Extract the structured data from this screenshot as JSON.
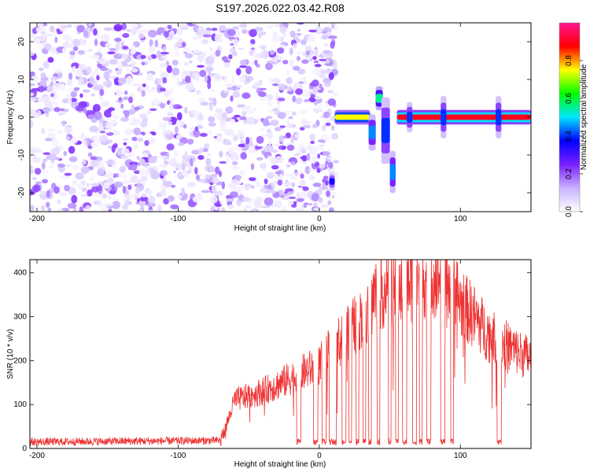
{
  "figure_title": "S197.2026.022.03.42.R08",
  "chart_data": [
    {
      "type": "heatmap",
      "title": "",
      "xlabel": "Height of straight line (km)",
      "ylabel": "Frequency (Hz)",
      "xlim": [
        -205,
        150
      ],
      "ylim": [
        -25,
        25
      ],
      "x_ticks": [
        -200,
        -100,
        0,
        100
      ],
      "y_ticks": [
        20,
        10,
        0,
        -10,
        -20
      ],
      "grid": false,
      "colorbar": {
        "label": "Normalized spectral amplitude",
        "range": [
          0,
          1
        ],
        "ticks": [
          0.0,
          0.2,
          0.4,
          0.6,
          0.8
        ],
        "colormap": [
          "#ffffff",
          "#c9b3ff",
          "#7a1fff",
          "#0000ff",
          "#00e5ff",
          "#00ff00",
          "#ffff00",
          "#ff0000",
          "#ff1493"
        ]
      },
      "noise_region": {
        "x_range": [
          -205,
          12
        ],
        "y_range": [
          -25,
          25
        ],
        "level_range": [
          0.02,
          0.16
        ]
      },
      "features": [
        {
          "x_range": [
            7,
            11
          ],
          "freq": -17,
          "freq_halfwidth": 1.5,
          "level": 0.35
        },
        {
          "x_range": [
            11,
            36
          ],
          "freq": 0,
          "freq_halfwidth": 1.2,
          "level": 0.75
        },
        {
          "x_range": [
            35,
            40
          ],
          "freq_range": [
            -7,
            -1
          ],
          "level": 0.45
        },
        {
          "x_range": [
            40,
            45
          ],
          "freq_range": [
            3,
            7
          ],
          "level": 0.55
        },
        {
          "x_range": [
            44,
            50
          ],
          "freq_range": [
            -9,
            2
          ],
          "level": 0.4
        },
        {
          "x_range": [
            50,
            54
          ],
          "freq_range": [
            -18,
            -11
          ],
          "level": 0.45
        },
        {
          "x_range": [
            55,
            150
          ],
          "freq": 0,
          "freq_halfwidth": 1.2,
          "level": 0.9
        },
        {
          "x_range": [
            62,
            66
          ],
          "freq": 0,
          "freq_halfwidth": 2.5,
          "level": 0.4
        },
        {
          "x_range": [
            86,
            90
          ],
          "freq": 0,
          "freq_halfwidth": 3.5,
          "level": 0.4
        },
        {
          "x_range": [
            125,
            129
          ],
          "freq": 0,
          "freq_halfwidth": 3.5,
          "level": 0.4
        }
      ]
    },
    {
      "type": "line",
      "title": "",
      "xlabel": "Height of straight line (km)",
      "ylabel": "SNR (10 * v/v)",
      "xlim": [
        -205,
        150
      ],
      "ylim": [
        0,
        430
      ],
      "x_ticks": [
        -200,
        -100,
        0,
        100
      ],
      "y_ticks": [
        0,
        100,
        200,
        300,
        400
      ],
      "grid": false,
      "line_color": "#ee3333",
      "envelope": [
        {
          "x": -205,
          "y": 15
        },
        {
          "x": -70,
          "y": 18
        },
        {
          "x": -65,
          "y": 60
        },
        {
          "x": -60,
          "y": 110
        },
        {
          "x": -40,
          "y": 130
        },
        {
          "x": -20,
          "y": 160
        },
        {
          "x": 0,
          "y": 190
        },
        {
          "x": 10,
          "y": 230
        },
        {
          "x": 20,
          "y": 260
        },
        {
          "x": 30,
          "y": 300
        },
        {
          "x": 40,
          "y": 350
        },
        {
          "x": 50,
          "y": 370
        },
        {
          "x": 60,
          "y": 370
        },
        {
          "x": 70,
          "y": 390
        },
        {
          "x": 80,
          "y": 395
        },
        {
          "x": 95,
          "y": 380
        },
        {
          "x": 100,
          "y": 330
        },
        {
          "x": 110,
          "y": 300
        },
        {
          "x": 120,
          "y": 260
        },
        {
          "x": 130,
          "y": 240
        },
        {
          "x": 140,
          "y": 220
        },
        {
          "x": 150,
          "y": 205
        }
      ],
      "dropouts": [
        {
          "x_range": [
            -16,
            -13
          ],
          "y": 15
        },
        {
          "x_range": [
            -4,
            -1
          ],
          "y": 15
        },
        {
          "x_range": [
            2,
            5
          ],
          "y": 15
        },
        {
          "x_range": [
            7,
            10
          ],
          "y": 15
        },
        {
          "x_range": [
            10,
            12
          ],
          "y": 15
        },
        {
          "x_range": [
            16,
            19
          ],
          "y": 15
        },
        {
          "x_range": [
            21,
            23
          ],
          "y": 15
        },
        {
          "x_range": [
            26,
            28
          ],
          "y": 15
        },
        {
          "x_range": [
            31,
            33
          ],
          "y": 15
        },
        {
          "x_range": [
            35,
            37
          ],
          "y": 15
        },
        {
          "x_range": [
            41,
            43
          ],
          "y": 15
        },
        {
          "x_range": [
            49,
            51
          ],
          "y": 15
        },
        {
          "x_range": [
            54,
            56
          ],
          "y": 15
        },
        {
          "x_range": [
            59,
            62
          ],
          "y": 15
        },
        {
          "x_range": [
            66,
            69
          ],
          "y": 15
        },
        {
          "x_range": [
            71,
            73
          ],
          "y": 15
        },
        {
          "x_range": [
            76,
            79
          ],
          "y": 15
        },
        {
          "x_range": [
            86,
            89
          ],
          "y": 15
        },
        {
          "x_range": [
            93,
            95
          ],
          "y": 15
        },
        {
          "x_range": [
            126,
            129
          ],
          "y": 15
        }
      ]
    }
  ]
}
